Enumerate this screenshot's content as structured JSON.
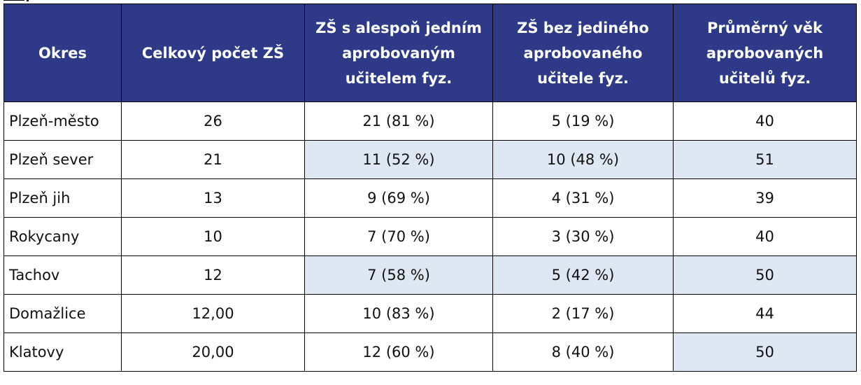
{
  "table": {
    "headers": [
      "Okres",
      "Celkový počet ZŠ",
      "ZŠ s alespoň jedním aprobovaným učitelem fyz.",
      "ZŠ bez jediného aprobovaného učitele fyz.",
      "Průměrný věk aprobovaných učitelů fyz."
    ],
    "rows": [
      [
        "Plzeň-město",
        "26",
        "21 (81 %)",
        "5 (19 %)",
        "40"
      ],
      [
        "Plzeň sever",
        "21",
        "11 (52 %)",
        "10 (48 %)",
        "51"
      ],
      [
        "Plzeň jih",
        "13",
        "9 (69 %)",
        "4 (31 %)",
        "39"
      ],
      [
        "Rokycany",
        "10",
        "7 (70 %)",
        "3 (30 %)",
        "40"
      ],
      [
        "Tachov",
        "12",
        "7 (58 %)",
        "5 (42 %)",
        "50"
      ],
      [
        "Domažlice",
        "12,00",
        "10 (83 %)",
        "2 (17 %)",
        "44"
      ],
      [
        "Klatovy",
        "20,00",
        "12 (60 %)",
        "8 (40 %)",
        "50"
      ]
    ],
    "highlighted_cells": [
      [
        1,
        2
      ],
      [
        1,
        3
      ],
      [
        1,
        4
      ],
      [
        4,
        2
      ],
      [
        4,
        3
      ],
      [
        4,
        4
      ],
      [
        6,
        4
      ]
    ],
    "colors": {
      "header_bg": "#2e3a87",
      "header_text": "#ffffff",
      "highlight_bg": "#dde8f3"
    }
  }
}
